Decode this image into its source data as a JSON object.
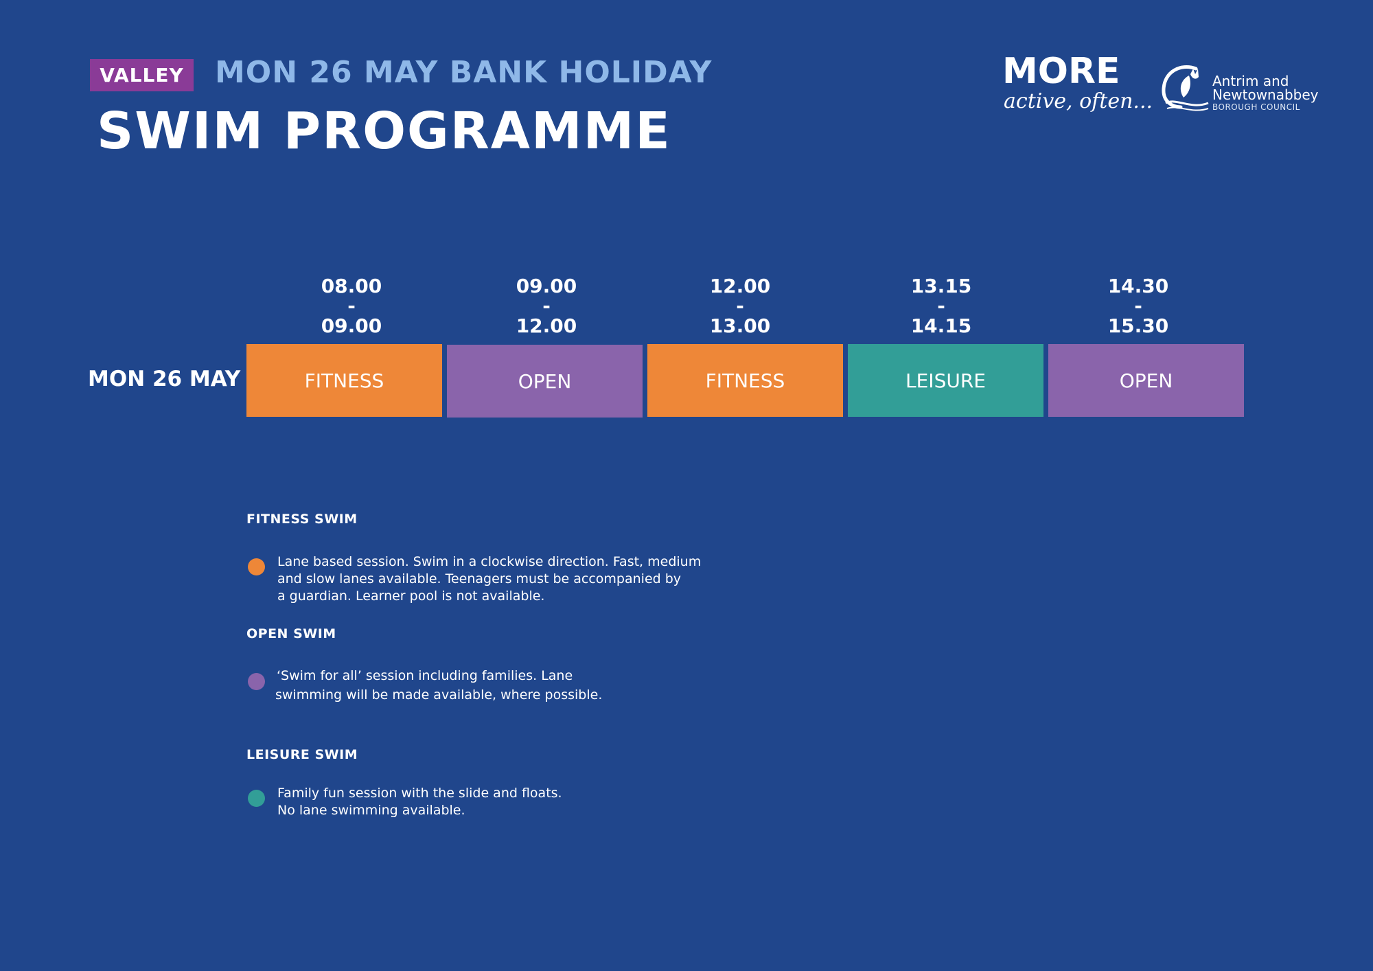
{
  "header": {
    "venue": "VALLEY",
    "subtitle": "MON 26 MAY BANK HOLIDAY",
    "title": "SWIM PROGRAMME"
  },
  "logos": {
    "brand_main": "MORE",
    "brand_tagline": "active, often...",
    "council_line1": "Antrim and",
    "council_line2": "Newtownabbey",
    "council_line3": "BOROUGH COUNCIL"
  },
  "timetable": {
    "day": "MON 26 MAY",
    "sessions": [
      {
        "start": "08.00",
        "sep": "-",
        "end": "09.00",
        "label": "FITNESS",
        "color": "#ee8738"
      },
      {
        "start": "09.00",
        "sep": "-",
        "end": "12.00",
        "label": "OPEN",
        "color": "#8a64ab"
      },
      {
        "start": "12.00",
        "sep": "-",
        "end": "13.00",
        "label": "FITNESS",
        "color": "#ee8738"
      },
      {
        "start": "13.15",
        "sep": "-",
        "end": "14.15",
        "label": "LEISURE",
        "color": "#329e97"
      },
      {
        "start": "14.30",
        "sep": "-",
        "end": "15.30",
        "label": "OPEN",
        "color": "#8a64ab"
      }
    ]
  },
  "legend": [
    {
      "heading": "FITNESS SWIM",
      "color": "#ee8738",
      "lines": [
        "Lane based session. Swim in a clockwise direction. Fast, medium",
        "and slow lanes available. Teenagers must be accompanied by",
        "a guardian. Learner pool is not available."
      ]
    },
    {
      "heading": "OPEN SWIM",
      "color": "#8a64ab",
      "lines": [
        "‘Swim for all’ session including families. Lane",
        "swimming will be made available, where possible."
      ]
    },
    {
      "heading": "LEISURE SWIM",
      "color": "#329e97",
      "lines": [
        "Family fun session with the slide and floats.",
        "No lane swimming available."
      ]
    }
  ]
}
